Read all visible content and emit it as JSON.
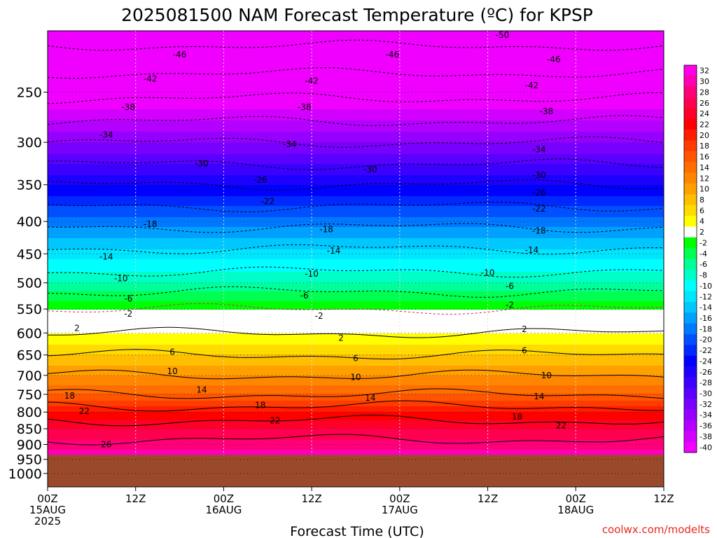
{
  "chart_data": {
    "type": "heatmap",
    "title": "2025081500 NAM Forecast Temperature (ºC) for KPSP",
    "xlabel": "Forecast Time (UTC)",
    "ylabel": "",
    "credit": "coolwx.com/modelts",
    "x_range_hours": [
      0,
      84
    ],
    "y_scale": "log",
    "ylim_hpa": [
      1050,
      200
    ],
    "y_ticks": [
      250,
      300,
      350,
      400,
      450,
      500,
      550,
      600,
      650,
      700,
      750,
      800,
      850,
      900,
      950,
      1000
    ],
    "x_ticks": [
      {
        "hour": 0,
        "lines": [
          "00Z",
          "15AUG",
          "2025"
        ]
      },
      {
        "hour": 12,
        "lines": [
          "12Z"
        ]
      },
      {
        "hour": 24,
        "lines": [
          "00Z",
          "16AUG"
        ]
      },
      {
        "hour": 36,
        "lines": [
          "12Z"
        ]
      },
      {
        "hour": 48,
        "lines": [
          "00Z",
          "17AUG"
        ]
      },
      {
        "hour": 60,
        "lines": [
          "12Z"
        ]
      },
      {
        "hour": 72,
        "lines": [
          "00Z",
          "18AUG"
        ]
      },
      {
        "hour": 84,
        "lines": [
          "12Z"
        ]
      }
    ],
    "ground_level_hpa": 935,
    "ground_color": "#9a4a2a",
    "temperature_profile": [
      {
        "p": 200,
        "t": -52
      },
      {
        "p": 250,
        "t": -43
      },
      {
        "p": 300,
        "t": -34
      },
      {
        "p": 350,
        "t": -26
      },
      {
        "p": 400,
        "t": -19
      },
      {
        "p": 450,
        "t": -13
      },
      {
        "p": 500,
        "t": -8
      },
      {
        "p": 550,
        "t": -2
      },
      {
        "p": 600,
        "t": 2
      },
      {
        "p": 650,
        "t": 6
      },
      {
        "p": 700,
        "t": 10
      },
      {
        "p": 750,
        "t": 14
      },
      {
        "p": 800,
        "t": 20
      },
      {
        "p": 850,
        "t": 24
      },
      {
        "p": 900,
        "t": 27
      },
      {
        "p": 935,
        "t": 29
      }
    ],
    "contour_levels": [
      -50,
      -46,
      -42,
      -38,
      -34,
      -30,
      -26,
      -22,
      -18,
      -14,
      -10,
      -6,
      -2,
      2,
      6,
      10,
      14,
      18,
      22,
      26
    ],
    "contour_labels": [
      {
        "v": "-50",
        "h": 62,
        "p": 203
      },
      {
        "v": "-46",
        "h": 18,
        "p": 218
      },
      {
        "v": "-46",
        "h": 47,
        "p": 218
      },
      {
        "v": "-46",
        "h": 69,
        "p": 222
      },
      {
        "v": "-42",
        "h": 14,
        "p": 238
      },
      {
        "v": "-42",
        "h": 36,
        "p": 240
      },
      {
        "v": "-42",
        "h": 66,
        "p": 244
      },
      {
        "v": "-38",
        "h": 11,
        "p": 264
      },
      {
        "v": "-38",
        "h": 35,
        "p": 264
      },
      {
        "v": "-38",
        "h": 68,
        "p": 268
      },
      {
        "v": "-34",
        "h": 8,
        "p": 292
      },
      {
        "v": "-34",
        "h": 33,
        "p": 302
      },
      {
        "v": "-34",
        "h": 67,
        "p": 308
      },
      {
        "v": "-30",
        "h": 21,
        "p": 324
      },
      {
        "v": "-30",
        "h": 44,
        "p": 331
      },
      {
        "v": "-30",
        "h": 67,
        "p": 338
      },
      {
        "v": "-26",
        "h": 29,
        "p": 344
      },
      {
        "v": "-26",
        "h": 67,
        "p": 360
      },
      {
        "v": "-22",
        "h": 30,
        "p": 372
      },
      {
        "v": "-22",
        "h": 67,
        "p": 382
      },
      {
        "v": "-18",
        "h": 14,
        "p": 404
      },
      {
        "v": "-18",
        "h": 38,
        "p": 412
      },
      {
        "v": "-18",
        "h": 67,
        "p": 414
      },
      {
        "v": "-14",
        "h": 8,
        "p": 455
      },
      {
        "v": "-14",
        "h": 39,
        "p": 445
      },
      {
        "v": "-14",
        "h": 66,
        "p": 444
      },
      {
        "v": "-10",
        "h": 10,
        "p": 492
      },
      {
        "v": "-10",
        "h": 36,
        "p": 484
      },
      {
        "v": "-10",
        "h": 60,
        "p": 482
      },
      {
        "v": "-6",
        "h": 11,
        "p": 530
      },
      {
        "v": "-6",
        "h": 35,
        "p": 524
      },
      {
        "v": "-6",
        "h": 63,
        "p": 506
      },
      {
        "v": "-2",
        "h": 11,
        "p": 560
      },
      {
        "v": "-2",
        "h": 37,
        "p": 564
      },
      {
        "v": "-2",
        "h": 63,
        "p": 542
      },
      {
        "v": "2",
        "h": 4,
        "p": 590
      },
      {
        "v": "2",
        "h": 40,
        "p": 611
      },
      {
        "v": "2",
        "h": 65,
        "p": 592
      },
      {
        "v": "6",
        "h": 17,
        "p": 643
      },
      {
        "v": "6",
        "h": 42,
        "p": 658
      },
      {
        "v": "6",
        "h": 65,
        "p": 640
      },
      {
        "v": "10",
        "h": 17,
        "p": 690
      },
      {
        "v": "10",
        "h": 42,
        "p": 705
      },
      {
        "v": "10",
        "h": 68,
        "p": 700
      },
      {
        "v": "14",
        "h": 21,
        "p": 738
      },
      {
        "v": "14",
        "h": 44,
        "p": 760
      },
      {
        "v": "14",
        "h": 67,
        "p": 756
      },
      {
        "v": "18",
        "h": 3,
        "p": 754
      },
      {
        "v": "18",
        "h": 29,
        "p": 780
      },
      {
        "v": "18",
        "h": 64,
        "p": 814
      },
      {
        "v": "22",
        "h": 5,
        "p": 797
      },
      {
        "v": "22",
        "h": 31,
        "p": 825
      },
      {
        "v": "22",
        "h": 70,
        "p": 840
      },
      {
        "v": "26",
        "h": 8,
        "p": 900
      }
    ],
    "colorbar": {
      "labels": [
        "32",
        "30",
        "28",
        "26",
        "24",
        "22",
        "20",
        "18",
        "16",
        "14",
        "12",
        "10",
        "8",
        "6",
        "4",
        "2",
        "-2",
        "-4",
        "-6",
        "-8",
        "-10",
        "-12",
        "-14",
        "-16",
        "-18",
        "-20",
        "-22",
        "-24",
        "-26",
        "-28",
        "-30",
        "-32",
        "-34",
        "-36",
        "-38",
        "-40"
      ],
      "colors": [
        "#ff00e6",
        "#ff00b4",
        "#ff0078",
        "#ff0050",
        "#ff0028",
        "#ff0000",
        "#ff1e00",
        "#ff3c00",
        "#ff5500",
        "#ff6e00",
        "#ff8700",
        "#ffa000",
        "#ffbe00",
        "#ffdc00",
        "#ffff00",
        "#ffffff",
        "#00ff00",
        "#00ff50",
        "#00ff96",
        "#00ffc8",
        "#00ffff",
        "#00e6ff",
        "#00c8ff",
        "#00a0ff",
        "#0078ff",
        "#0050ff",
        "#0028ff",
        "#0000ff",
        "#1e00ff",
        "#3c00ff",
        "#5a00ff",
        "#7800ff",
        "#9600ff",
        "#b400ff",
        "#d200ff",
        "#f000ff"
      ]
    }
  }
}
